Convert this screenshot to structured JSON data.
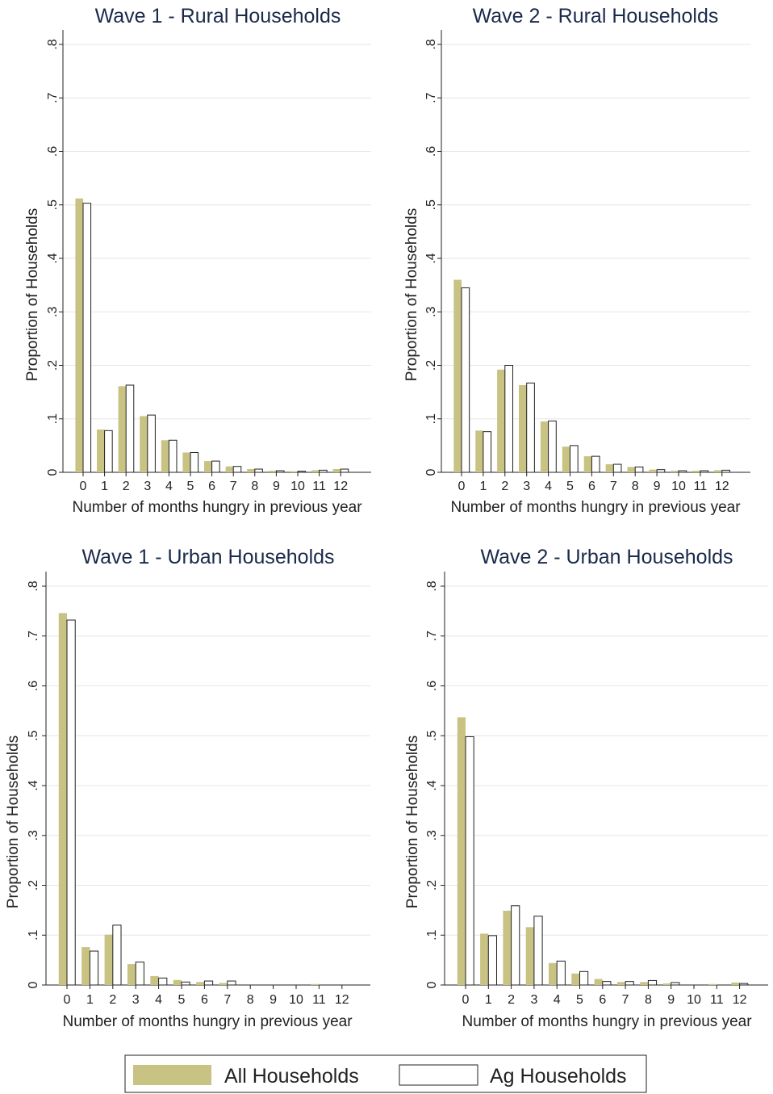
{
  "chart_data": [
    {
      "type": "bar",
      "title": "Wave 1 - Rural Households",
      "xlabel": "Number of months hungry in previous year",
      "ylabel": "Proportion of Households",
      "ylim": [
        0,
        0.8
      ],
      "yticks": [
        "0",
        ".1",
        ".2",
        ".3",
        ".4",
        ".5",
        ".6",
        ".7",
        ".8"
      ],
      "categories": [
        "0",
        "1",
        "2",
        "3",
        "4",
        "5",
        "6",
        "7",
        "8",
        "9",
        "10",
        "11",
        "12"
      ],
      "grid": true,
      "series": [
        {
          "name": "All Households",
          "values": [
            0.512,
            0.08,
            0.161,
            0.105,
            0.06,
            0.037,
            0.021,
            0.011,
            0.006,
            0.003,
            0.002,
            0.004,
            0.006
          ]
        },
        {
          "name": "Ag Households",
          "values": [
            0.503,
            0.078,
            0.163,
            0.107,
            0.06,
            0.037,
            0.021,
            0.011,
            0.006,
            0.003,
            0.002,
            0.004,
            0.006
          ]
        }
      ]
    },
    {
      "type": "bar",
      "title": "Wave 2 - Rural Households",
      "xlabel": "Number of months hungry in previous year",
      "ylabel": "Proportion of Households",
      "ylim": [
        0,
        0.8
      ],
      "yticks": [
        "0",
        ".1",
        ".2",
        ".3",
        ".4",
        ".5",
        ".6",
        ".7",
        ".8"
      ],
      "categories": [
        "0",
        "1",
        "2",
        "3",
        "4",
        "5",
        "6",
        "7",
        "8",
        "9",
        "10",
        "11",
        "12"
      ],
      "grid": true,
      "series": [
        {
          "name": "All Households",
          "values": [
            0.36,
            0.078,
            0.192,
            0.163,
            0.095,
            0.048,
            0.03,
            0.015,
            0.01,
            0.005,
            0.003,
            0.003,
            0.004
          ]
        },
        {
          "name": "Ag Households",
          "values": [
            0.345,
            0.076,
            0.2,
            0.167,
            0.096,
            0.05,
            0.03,
            0.015,
            0.01,
            0.005,
            0.003,
            0.003,
            0.004
          ]
        }
      ]
    },
    {
      "type": "bar",
      "title": "Wave 1 - Urban Households",
      "xlabel": "Number of months hungry in previous year",
      "ylabel": "Proportion of Households",
      "ylim": [
        0,
        0.8
      ],
      "yticks": [
        "0",
        ".1",
        ".2",
        ".3",
        ".4",
        ".5",
        ".6",
        ".7",
        ".8"
      ],
      "categories": [
        "0",
        "1",
        "2",
        "3",
        "4",
        "5",
        "6",
        "7",
        "8",
        "9",
        "10",
        "11",
        "12"
      ],
      "grid": true,
      "series": [
        {
          "name": "All Households",
          "values": [
            0.746,
            0.076,
            0.101,
            0.042,
            0.018,
            0.01,
            0.006,
            0.004,
            0.0,
            0.0,
            0.0,
            0.002,
            0.0
          ]
        },
        {
          "name": "Ag Households",
          "values": [
            0.732,
            0.068,
            0.12,
            0.046,
            0.014,
            0.006,
            0.008,
            0.008,
            0.0,
            0.0,
            0.0,
            0.0,
            0.0
          ]
        }
      ]
    },
    {
      "type": "bar",
      "title": "Wave 2 - Urban Households",
      "xlabel": "Number of months hungry in previous year",
      "ylabel": "Proportion of Households",
      "ylim": [
        0,
        0.8
      ],
      "yticks": [
        "0",
        ".1",
        ".2",
        ".3",
        ".4",
        ".5",
        ".6",
        ".7",
        ".8"
      ],
      "categories": [
        "0",
        "1",
        "2",
        "3",
        "4",
        "5",
        "6",
        "7",
        "8",
        "9",
        "10",
        "11",
        "12"
      ],
      "grid": true,
      "series": [
        {
          "name": "All Households",
          "values": [
            0.537,
            0.103,
            0.149,
            0.116,
            0.044,
            0.023,
            0.012,
            0.006,
            0.006,
            0.003,
            0.0,
            0.002,
            0.005
          ]
        },
        {
          "name": "Ag Households",
          "values": [
            0.498,
            0.099,
            0.159,
            0.138,
            0.048,
            0.027,
            0.007,
            0.007,
            0.009,
            0.005,
            0.0,
            0.0,
            0.003
          ]
        }
      ]
    }
  ],
  "legend": {
    "items": [
      {
        "label": "All Households",
        "color": "#c8c283"
      },
      {
        "label": "Ag Households",
        "color": "#ffffff"
      }
    ]
  },
  "colors": {
    "all_households": "#c8c283",
    "ag_households": "#ffffff",
    "title": "#1a2a4a",
    "grid": "#e6e6e6",
    "axis": "#222222"
  }
}
